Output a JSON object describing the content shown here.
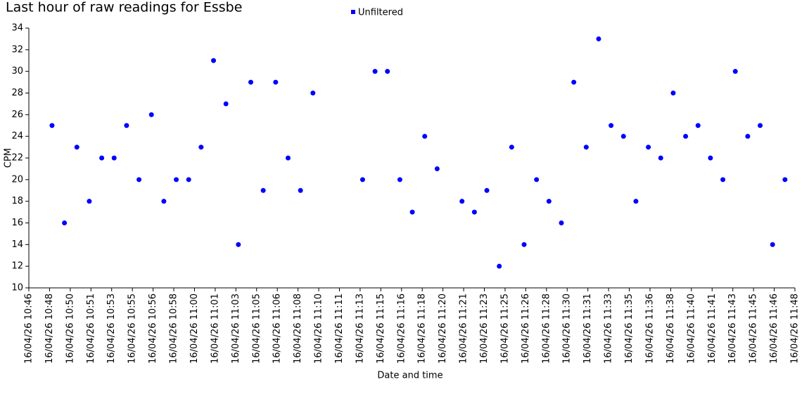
{
  "chart_data": {
    "type": "scatter",
    "title": "Last hour of raw readings for Essbe",
    "xlabel": "Date and time",
    "ylabel": "CPM",
    "series": [
      {
        "name": "Unfiltered",
        "color": "#0000ff",
        "x": [
          38912,
          38972,
          39032,
          39092,
          39152,
          39212,
          39272,
          39332,
          39392,
          39452,
          39512,
          39572,
          39632,
          39692,
          39752,
          39812,
          39872,
          39932,
          39992,
          40052,
          40112,
          40172,
          40412,
          40472,
          40532,
          40592,
          40652,
          40712,
          40772,
          40892,
          40952,
          41012,
          41072,
          41132,
          41192,
          41252,
          41312,
          41372,
          41432,
          41492,
          41552,
          41612,
          41672,
          41732,
          41792,
          41852,
          41912,
          41972,
          42032,
          42092,
          42152,
          42212,
          42272,
          42332,
          42392,
          42452
        ],
        "values": [
          25,
          16,
          23,
          18,
          22,
          22,
          25,
          20,
          26,
          18,
          20,
          20,
          23,
          31,
          27,
          14,
          29,
          19,
          29,
          22,
          19,
          28,
          20,
          30,
          30,
          20,
          17,
          24,
          21,
          18,
          17,
          19,
          12,
          23,
          14,
          20,
          18,
          16,
          29,
          23,
          33,
          25,
          24,
          18,
          23,
          22,
          28,
          24,
          25,
          22,
          20,
          30,
          24,
          25,
          14,
          20
        ]
      }
    ],
    "xlim": [
      38800,
      42500
    ],
    "xticks": [
      {
        "value": 38800,
        "label": "16/04/26 10:46"
      },
      {
        "value": 38900,
        "label": "16/04/26 10:48"
      },
      {
        "value": 39000,
        "label": "16/04/26 10:50"
      },
      {
        "value": 39100,
        "label": "16/04/26 10:51"
      },
      {
        "value": 39200,
        "label": "16/04/26 10:53"
      },
      {
        "value": 39300,
        "label": "16/04/26 10:55"
      },
      {
        "value": 39400,
        "label": "16/04/26 10:56"
      },
      {
        "value": 39500,
        "label": "16/04/26 10:58"
      },
      {
        "value": 39600,
        "label": "16/04/26 11:00"
      },
      {
        "value": 39700,
        "label": "16/04/26 11:01"
      },
      {
        "value": 39800,
        "label": "16/04/26 11:03"
      },
      {
        "value": 39900,
        "label": "16/04/26 11:05"
      },
      {
        "value": 40000,
        "label": "16/04/26 11:06"
      },
      {
        "value": 40100,
        "label": "16/04/26 11:08"
      },
      {
        "value": 40200,
        "label": "16/04/26 11:10"
      },
      {
        "value": 40300,
        "label": "16/04/26 11:11"
      },
      {
        "value": 40400,
        "label": "16/04/26 11:13"
      },
      {
        "value": 40500,
        "label": "16/04/26 11:15"
      },
      {
        "value": 40600,
        "label": "16/04/26 11:16"
      },
      {
        "value": 40700,
        "label": "16/04/26 11:18"
      },
      {
        "value": 40800,
        "label": "16/04/26 11:20"
      },
      {
        "value": 40900,
        "label": "16/04/26 11:21"
      },
      {
        "value": 41000,
        "label": "16/04/26 11:23"
      },
      {
        "value": 41100,
        "label": "16/04/26 11:25"
      },
      {
        "value": 41200,
        "label": "16/04/26 11:26"
      },
      {
        "value": 41300,
        "label": "16/04/26 11:28"
      },
      {
        "value": 41400,
        "label": "16/04/26 11:30"
      },
      {
        "value": 41500,
        "label": "16/04/26 11:31"
      },
      {
        "value": 41600,
        "label": "16/04/26 11:33"
      },
      {
        "value": 41700,
        "label": "16/04/26 11:35"
      },
      {
        "value": 41800,
        "label": "16/04/26 11:36"
      },
      {
        "value": 41900,
        "label": "16/04/26 11:38"
      },
      {
        "value": 42000,
        "label": "16/04/26 11:40"
      },
      {
        "value": 42100,
        "label": "16/04/26 11:41"
      },
      {
        "value": 42200,
        "label": "16/04/26 11:43"
      },
      {
        "value": 42300,
        "label": "16/04/26 11:45"
      },
      {
        "value": 42400,
        "label": "16/04/26 11:46"
      },
      {
        "value": 42500,
        "label": "16/04/26 11:48"
      }
    ],
    "ylim": [
      10,
      34
    ],
    "yticks": [
      10,
      12,
      14,
      16,
      18,
      20,
      22,
      24,
      26,
      28,
      30,
      32,
      34
    ]
  }
}
